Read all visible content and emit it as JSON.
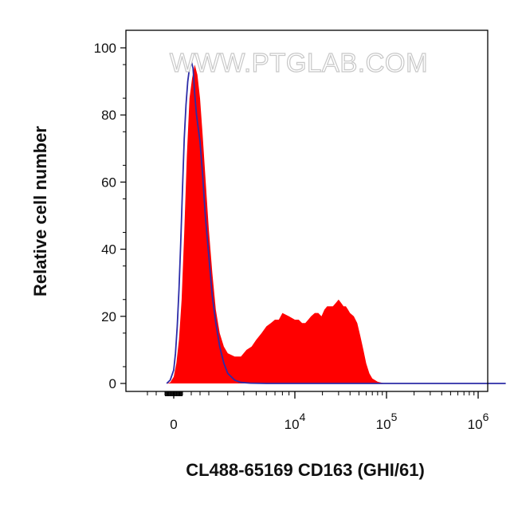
{
  "chart_data": {
    "type": "area",
    "xlabel": "CL488-65169 CD163 (GHI/61)",
    "ylabel": "Relative cell number",
    "watermark": "WWW.PTGLAB.COM",
    "ylim": [
      0,
      100
    ],
    "y_ticks": [
      0,
      20,
      40,
      60,
      80,
      100
    ],
    "x_scale": "biexponential",
    "x_ticks": [
      {
        "base": "0",
        "exp": ""
      },
      {
        "base": "10",
        "exp": "4"
      },
      {
        "base": "10",
        "exp": "5"
      },
      {
        "base": "10",
        "exp": "6"
      }
    ],
    "grid": false,
    "colors": {
      "stained": "#ff0000",
      "control": "#2c2ca8"
    },
    "series": [
      {
        "style": "filled",
        "color": "#ff0000",
        "x": [
          -400,
          -200,
          0,
          150,
          300,
          450,
          600,
          750,
          900,
          1050,
          1200,
          1350,
          1500,
          1650,
          1800,
          2000,
          2200,
          2400,
          2600,
          2800,
          3000,
          3400,
          3800,
          4200,
          4600,
          5000,
          5500,
          6000,
          6500,
          7000,
          7500,
          8000,
          9000,
          10000,
          11000,
          12000,
          13000,
          14000,
          15000,
          16500,
          18000,
          19500,
          21000,
          22500,
          24000,
          26000,
          28000,
          30000,
          32000,
          34000,
          36000,
          38000,
          40000,
          44000,
          48000,
          52000,
          56000,
          60000,
          65000,
          70000,
          80000,
          90000,
          100000,
          200000,
          500000,
          1000000,
          2000000
        ],
        "y": [
          0,
          0.3,
          2,
          6,
          13,
          25,
          45,
          68,
          85,
          91,
          95,
          92,
          85,
          74,
          62,
          46,
          33,
          22,
          15,
          11,
          9,
          8,
          8,
          10,
          11,
          13,
          15,
          17,
          18,
          19,
          19,
          21,
          20,
          19,
          19,
          18,
          18,
          19,
          20,
          21,
          21,
          20,
          22,
          23,
          23,
          23,
          24,
          25,
          24,
          23,
          23,
          22,
          21,
          20,
          18,
          14,
          10,
          6,
          3,
          1.5,
          0.5,
          0.2,
          0,
          0,
          0,
          0,
          0
        ]
      },
      {
        "style": "outline",
        "color": "#2c2ca8",
        "x": [
          -400,
          -200,
          0,
          100,
          200,
          300,
          400,
          500,
          600,
          700,
          800,
          900,
          1000,
          1100,
          1200,
          1300,
          1400,
          1500,
          1650,
          1800,
          2000,
          2200,
          2400,
          2600,
          2800,
          3000,
          3400,
          3800,
          4500,
          6000,
          100000,
          1000000,
          2000000
        ],
        "y": [
          0,
          1,
          4,
          9,
          17,
          28,
          42,
          58,
          73,
          83,
          90,
          94,
          96,
          94,
          86,
          80,
          76,
          72,
          62,
          50,
          38,
          26,
          18,
          11,
          6,
          3,
          1,
          0.3,
          0.1,
          0,
          0,
          0,
          0
        ]
      }
    ]
  }
}
